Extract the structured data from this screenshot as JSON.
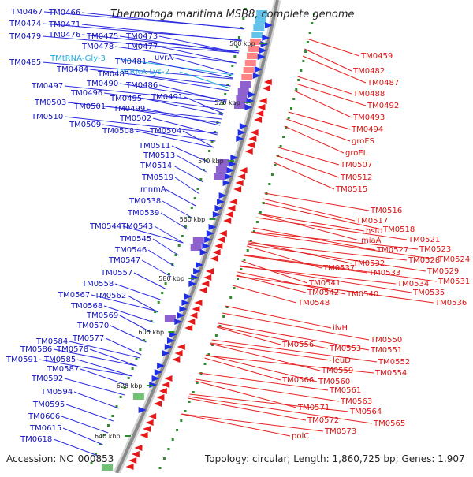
{
  "title": "Thermotoga maritima MSB8, complete genome",
  "footer": {
    "accession": "Accession: NC_000853",
    "summary": "Topology: circular; Length: 1,860,725 bp; Genes: 1,907"
  },
  "colors": {
    "left_label": "#1010c0",
    "left_line": "#2a2ae0",
    "trna_label": "#22aadd",
    "right_label": "#dd1111",
    "right_line": "#e62020",
    "backbone": "#8a8a8a",
    "minus_arrow": "#1f2fe6",
    "plus_arrow": "#e81818",
    "dots": "#2e8b2e"
  },
  "chart_data": {
    "type": "circular-genome-map",
    "organism": "Thermotoga maritima MSB8",
    "topology": "circular",
    "length_bp": 1860725,
    "genes_total": 1907,
    "scale_ticks": [
      "500 kbp",
      "520 kbp",
      "540 kbp",
      "560 kbp",
      "580 kbp",
      "600 kbp",
      "620 kbp",
      "640 kbp"
    ],
    "left_genes": [
      "TM0467",
      "TM0466",
      "TM0474",
      "TM0471",
      "TM0479",
      "TM0476",
      "TM0475",
      "TM0473",
      "TM0478",
      "TM0477",
      "TM0485",
      "TMtRNA-Gly-3",
      "TM0481",
      "uvrA",
      "TM0484",
      "TMtRNA-Lys-2",
      "TM0483",
      "TM0497",
      "TM0490",
      "TM0486",
      "TM0496",
      "TM0495",
      "TM0491",
      "TM0503",
      "TM0501",
      "TM0499",
      "TM0510",
      "TM0502",
      "TM0509",
      "TM0508",
      "TM0504",
      "TM0511",
      "TM0513",
      "TM0514",
      "TM0519",
      "mnmA",
      "TM0538",
      "TM0539",
      "TM0544",
      "TM0543",
      "TM0545",
      "TM0546",
      "TM0547",
      "TM0557",
      "TM0558",
      "TM0567",
      "TM0562",
      "TM0568",
      "TM0569",
      "TM0570",
      "TM0577",
      "TM0584",
      "TM0578",
      "TM0586",
      "TM0585",
      "TM0591",
      "TM0587",
      "TM0592",
      "TM0594",
      "TM0595",
      "TM0606",
      "TM0615",
      "TM0618"
    ],
    "right_genes": [
      "TM0459",
      "TM0482",
      "TM0487",
      "TM0488",
      "TM0492",
      "TM0493",
      "TM0494",
      "groES",
      "groEL",
      "TM0507",
      "TM0512",
      "TM0515",
      "TM0516",
      "TM0517",
      "TM0518",
      "hslU",
      "TM0521",
      "miaA",
      "TM0523",
      "TM0527",
      "TM0524",
      "TM0528",
      "TM0532",
      "TM0529",
      "TM0533",
      "TM0537",
      "TM0531",
      "TM0534",
      "TM0541",
      "TM0535",
      "TM0542",
      "TM0540",
      "TM0536",
      "TM0548",
      "ilvH",
      "TM0550",
      "TM0556",
      "TM0553",
      "TM0551",
      "leuD",
      "TM0552",
      "TM0559",
      "TM0554",
      "TM0566",
      "TM0560",
      "TM0561",
      "TM0563",
      "TM0571",
      "TM0564",
      "TM0572",
      "TM0565",
      "TM0573",
      "polC"
    ]
  }
}
